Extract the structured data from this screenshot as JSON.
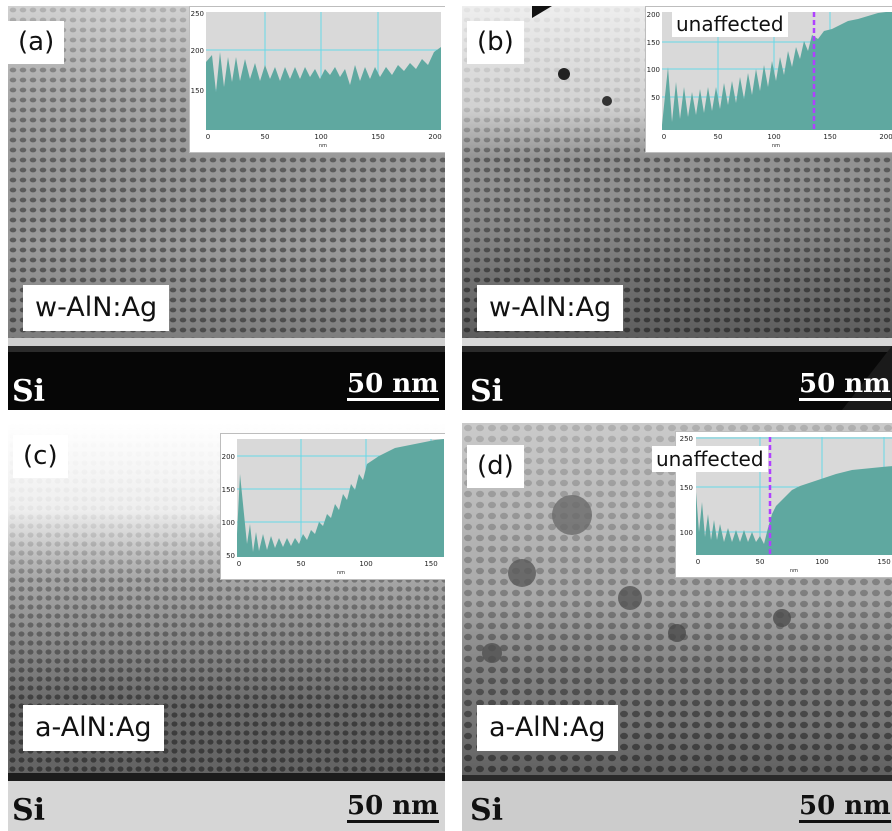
{
  "panels": [
    {
      "letter": "(a)",
      "material": "w-AlN:Ag",
      "substrate": "Si",
      "scale_bar": "50 nm",
      "inset": {
        "y_ticks": [
          "250",
          "200",
          "150"
        ],
        "x_ticks": [
          "0",
          "50",
          "100",
          "150",
          "200"
        ],
        "x_unit": "nm"
      }
    },
    {
      "letter": "(b)",
      "material": "w-AlN:Ag",
      "substrate": "Si",
      "scale_bar": "50 nm",
      "inset": {
        "y_ticks": [
          "200",
          "150",
          "100",
          "50"
        ],
        "x_ticks": [
          "0",
          "50",
          "100",
          "150",
          "200"
        ],
        "x_unit": "nm",
        "annotation": "unaffected",
        "marker_color": "#b040ff"
      }
    },
    {
      "letter": "(c)",
      "material": "a-AlN:Ag",
      "substrate": "Si",
      "scale_bar": "50 nm",
      "inset": {
        "y_ticks": [
          "200",
          "150",
          "100",
          "50"
        ],
        "x_ticks": [
          "0",
          "50",
          "100",
          "150"
        ],
        "x_unit": "nm"
      }
    },
    {
      "letter": "(d)",
      "material": "a-AlN:Ag",
      "substrate": "Si",
      "scale_bar": "50 nm",
      "inset": {
        "y_ticks": [
          "250",
          "150",
          "100"
        ],
        "x_ticks": [
          "0",
          "50",
          "100",
          "150"
        ],
        "x_unit": "nm",
        "annotation": "unaffected",
        "marker_color": "#b040ff"
      }
    }
  ],
  "colors": {
    "profile_fill": "#5fa8a0",
    "inset_plot_bg": "#d9d9d9",
    "inset_grid": "#66d9e8",
    "marker": "#b040ff"
  }
}
